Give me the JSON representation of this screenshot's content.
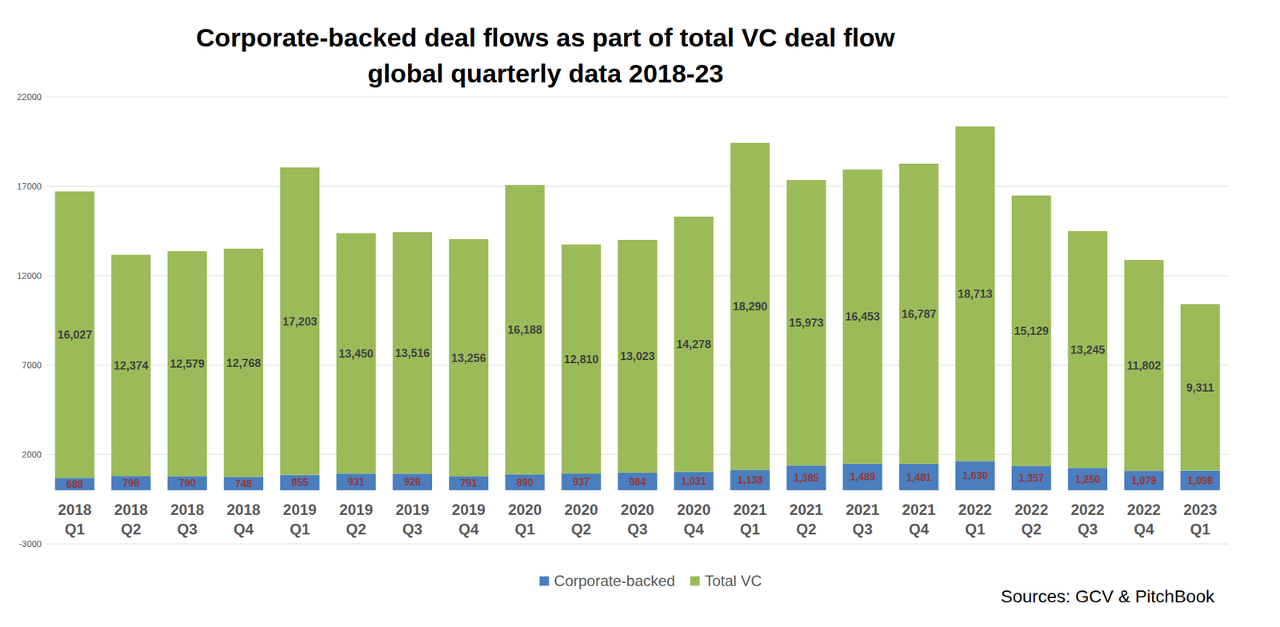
{
  "chart_data": {
    "type": "bar",
    "title": "Corporate-backed deal flows as part of total VC deal flow",
    "subtitle": "global quarterly data 2018-23",
    "annotations": [
      "Sources: GCV & PitchBook"
    ],
    "categories": [
      "2018 Q1",
      "2018 Q2",
      "2018 Q3",
      "2018 Q4",
      "2019 Q1",
      "2019 Q2",
      "2019 Q3",
      "2019 Q4",
      "2020 Q1",
      "2020 Q2",
      "2020 Q3",
      "2020 Q4",
      "2021 Q1",
      "2021 Q2",
      "2021 Q3",
      "2021 Q4",
      "2022 Q1",
      "2022 Q2",
      "2022 Q3",
      "2022 Q4",
      "2023 Q1"
    ],
    "series": [
      {
        "name": "Corporate-backed",
        "color": "#4a7ebf",
        "values": [
          688,
          796,
          790,
          748,
          855,
          931,
          926,
          791,
          890,
          937,
          984,
          1031,
          1138,
          1385,
          1489,
          1481,
          1630,
          1357,
          1250,
          1079,
          1098
        ],
        "value_labels": [
          "688",
          "796",
          "790",
          "748",
          "855",
          "931",
          "926",
          "791",
          "890",
          "937",
          "984",
          "1,031",
          "1,138",
          "1,385",
          "1,489",
          "1,481",
          "1,630",
          "1,357",
          "1,250",
          "1,079",
          "1,098"
        ]
      },
      {
        "name": "Total VC",
        "color": "#9bbb59",
        "values": [
          16027,
          12374,
          12579,
          12768,
          17203,
          13450,
          13516,
          13256,
          16188,
          12810,
          13023,
          14278,
          18290,
          15973,
          16453,
          16787,
          18713,
          15129,
          13245,
          11802,
          9311
        ],
        "value_labels": [
          "16,027",
          "12,374",
          "12,579",
          "12,768",
          "17,203",
          "13,450",
          "13,516",
          "13,256",
          "16,188",
          "12,810",
          "13,023",
          "14,278",
          "18,290",
          "15,973",
          "16,453",
          "16,787",
          "18,713",
          "15,129",
          "13,245",
          "11,802",
          "9,311"
        ]
      }
    ],
    "ylim": [
      -3000,
      22000
    ],
    "yticks": [
      -3000,
      2000,
      7000,
      12000,
      17000,
      22000
    ],
    "grid": true,
    "stacked": true,
    "data_labels": true,
    "legend": "bottom"
  }
}
